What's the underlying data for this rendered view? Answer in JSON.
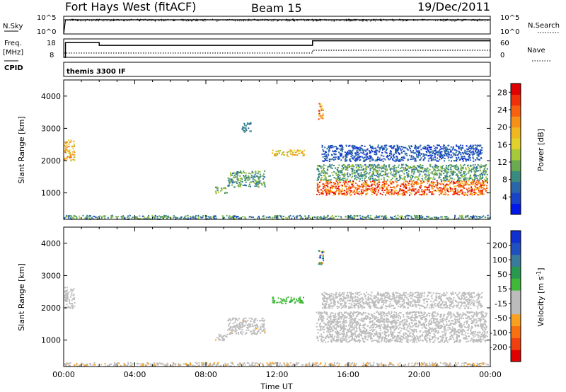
{
  "header": {
    "station": "Fort Hays West (fitACF)",
    "beam": "Beam 15",
    "date": "19/Dec/2011"
  },
  "status_panel": {
    "nsky_label": "N.Sky",
    "nsearch_label": "N.Search",
    "freq_label": "Freq.",
    "freq_unit": "[MHz]",
    "nave_label": "Nave",
    "cpid_label": "CPID",
    "cpid_value": "themis 3300 IF",
    "noise_ticks": [
      "10^5",
      "10^0"
    ],
    "freq_ticks": [
      "18",
      "8"
    ],
    "nave_ticks": [
      "60",
      "0"
    ]
  },
  "colors": {
    "power": [
      "#0018e8",
      "#1a44c8",
      "#2a66a8",
      "#3a8a80",
      "#6aaa50",
      "#a6c93a",
      "#e0d22a",
      "#f0b820",
      "#f89018",
      "#f86010",
      "#f03008",
      "#e00000"
    ],
    "velocity": [
      "#e00000",
      "#f04010",
      "#f87010",
      "#f8a020",
      "#bcbcbc",
      "#bcbcbc",
      "#40b838",
      "#289a50",
      "#3a7a9a",
      "#2050c0",
      "#1030d0"
    ]
  },
  "chart_data": [
    {
      "type": "line",
      "title": "Fort Hays West (fitACF) Beam 15",
      "xlabel": "",
      "ylabel": "N.Sky",
      "x_range_hours": [
        0,
        24
      ],
      "series": [
        {
          "name": "N.Sky",
          "x": [
            0,
            0.1,
            0.2,
            24
          ],
          "y_log10": [
            0,
            4,
            4,
            4
          ]
        },
        {
          "name": "N.Search",
          "x": [
            0,
            24
          ],
          "y_log10": [
            4,
            4
          ]
        }
      ]
    },
    {
      "type": "line",
      "xlabel": "",
      "ylabel": "Freq. [MHz]",
      "ylim": [
        8,
        18
      ],
      "ylim_right": [
        0,
        60
      ],
      "series": [
        {
          "name": "Freq.",
          "x": [
            0,
            0.1,
            0.1,
            2.0,
            2.0,
            14.0,
            14.0,
            24
          ],
          "y": [
            8,
            8,
            16,
            16,
            14.5,
            14.5,
            17,
            17
          ]
        },
        {
          "name": "Nave",
          "x": [
            0,
            2.0,
            2.0,
            14.0,
            14.0,
            24
          ],
          "y_right": [
            14,
            14,
            14,
            14,
            23,
            23
          ]
        }
      ]
    },
    {
      "type": "heatmap",
      "xlabel": "",
      "ylabel": "Slant Range [km]",
      "x_ticks": [
        "00:00",
        "04:00",
        "08:00",
        "12:00",
        "16:00",
        "20:00",
        "00:00"
      ],
      "x_range_hours": [
        0,
        24
      ],
      "y_ticks": [
        1000,
        2000,
        3000,
        4000
      ],
      "ylim": [
        180,
        4500
      ],
      "colorbar": {
        "label": "Power [dB]",
        "ticks": [
          4,
          8,
          12,
          16,
          20,
          24,
          28
        ],
        "range": [
          0,
          30
        ]
      },
      "regions": [
        {
          "t": [
            0.0,
            0.6
          ],
          "r": [
            2000,
            2650
          ],
          "v": [
            14,
            24
          ]
        },
        {
          "t": [
            8.5,
            9.2
          ],
          "r": [
            1000,
            1200
          ],
          "v": [
            8,
            16
          ]
        },
        {
          "t": [
            9.2,
            11.3
          ],
          "r": [
            1200,
            1700
          ],
          "v": [
            6,
            14
          ]
        },
        {
          "t": [
            10.0,
            10.5
          ],
          "r": [
            2900,
            3200
          ],
          "v": [
            4,
            10
          ]
        },
        {
          "t": [
            11.7,
            13.5
          ],
          "r": [
            2150,
            2350
          ],
          "v": [
            14,
            22
          ]
        },
        {
          "t": [
            14.3,
            14.6
          ],
          "r": [
            3300,
            3800
          ],
          "v": [
            16,
            28
          ]
        },
        {
          "t": [
            14.2,
            23.8
          ],
          "r": [
            950,
            1400
          ],
          "v": [
            18,
            30
          ]
        },
        {
          "t": [
            14.2,
            23.8
          ],
          "r": [
            1400,
            1900
          ],
          "v": [
            6,
            14
          ]
        },
        {
          "t": [
            14.5,
            23.5
          ],
          "r": [
            2000,
            2500
          ],
          "v": [
            2,
            8
          ]
        },
        {
          "t": [
            0.0,
            24.0
          ],
          "r": [
            200,
            320
          ],
          "v": [
            4,
            14
          ]
        }
      ]
    },
    {
      "type": "heatmap",
      "xlabel": "Time UT",
      "ylabel": "Slant Range [km]",
      "x_ticks": [
        "00:00",
        "04:00",
        "08:00",
        "12:00",
        "16:00",
        "20:00",
        "00:00"
      ],
      "x_range_hours": [
        0,
        24
      ],
      "y_ticks": [
        1000,
        2000,
        3000,
        4000
      ],
      "ylim": [
        180,
        4500
      ],
      "colorbar": {
        "label": "Velocity [m s^-1]",
        "ticks": [
          200,
          100,
          50,
          15,
          -15,
          -50,
          -100,
          -200
        ],
        "range": [
          -250,
          250
        ]
      },
      "regions": [
        {
          "t": [
            0.0,
            0.6
          ],
          "r": [
            2000,
            2650
          ],
          "v": [
            -10,
            10
          ]
        },
        {
          "t": [
            8.5,
            9.2
          ],
          "r": [
            1000,
            1200
          ],
          "v": [
            -70,
            -40
          ]
        },
        {
          "t": [
            9.2,
            11.3
          ],
          "r": [
            1200,
            1700
          ],
          "v": [
            -70,
            -30
          ]
        },
        {
          "t": [
            11.7,
            13.5
          ],
          "r": [
            2150,
            2350
          ],
          "v": [
            30,
            70
          ]
        },
        {
          "t": [
            14.3,
            14.6
          ],
          "r": [
            3300,
            3800
          ],
          "v": [
            -200,
            220
          ]
        },
        {
          "t": [
            14.2,
            23.8
          ],
          "r": [
            950,
            1900
          ],
          "v": [
            -10,
            10
          ]
        },
        {
          "t": [
            14.5,
            23.5
          ],
          "r": [
            2000,
            2500
          ],
          "v": [
            -10,
            10
          ]
        },
        {
          "t": [
            0.0,
            24.0
          ],
          "r": [
            200,
            320
          ],
          "v": [
            -80,
            -30
          ]
        }
      ]
    }
  ]
}
